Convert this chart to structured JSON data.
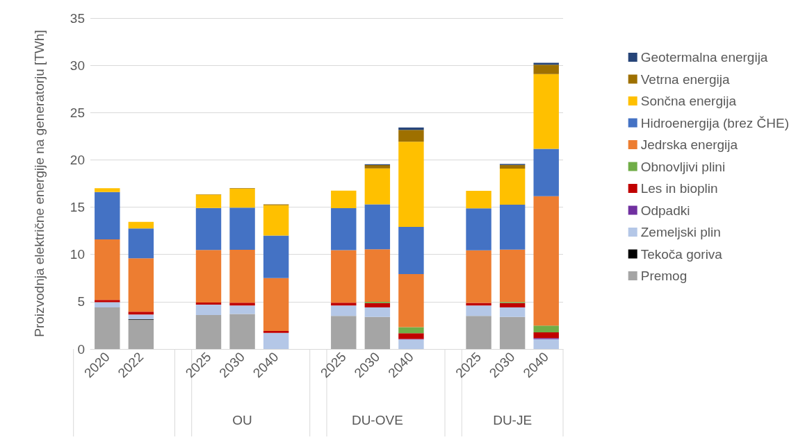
{
  "chart_data": {
    "type": "bar",
    "stacked": true,
    "ylabel": "Proizvodnja električne energije na generatorju [TWh]",
    "categories": [
      "2020",
      "2022",
      null,
      "2025",
      "2030",
      "2040",
      null,
      "2025",
      "2030",
      "2040",
      null,
      "2025",
      "2030",
      "2040"
    ],
    "series": [
      {
        "name": "Premog",
        "color": "#a5a5a5",
        "values": [
          4.4,
          3.1,
          null,
          3.6,
          3.7,
          0,
          null,
          3.5,
          3.4,
          0,
          null,
          3.5,
          3.4,
          0
        ]
      },
      {
        "name": "Tekoča goriva",
        "color": "#000000",
        "values": [
          0,
          0.05,
          null,
          0,
          0,
          0,
          null,
          0,
          0,
          0,
          null,
          0,
          0,
          0
        ]
      },
      {
        "name": "Zemeljski plin",
        "color": "#b4c7e7",
        "values": [
          0.55,
          0.5,
          null,
          1.1,
          0.9,
          1.7,
          null,
          1.1,
          1.0,
          1.0,
          null,
          1.1,
          1.0,
          1.05
        ]
      },
      {
        "name": "Odpadki",
        "color": "#7030a0",
        "values": [
          0,
          0,
          null,
          0,
          0,
          0,
          null,
          0,
          0,
          0.07,
          null,
          0,
          0,
          0.1
        ]
      },
      {
        "name": "Les in bioplin",
        "color": "#c00000",
        "values": [
          0.25,
          0.3,
          null,
          0.22,
          0.3,
          0.2,
          null,
          0.3,
          0.47,
          0.6,
          null,
          0.28,
          0.47,
          0.62
        ]
      },
      {
        "name": "Obnovljivi plini",
        "color": "#70ad47",
        "values": [
          0,
          0,
          null,
          0,
          0,
          0,
          null,
          0,
          0.12,
          0.65,
          null,
          0,
          0.1,
          0.7
        ]
      },
      {
        "name": "Jedrska energija",
        "color": "#ed7d31",
        "values": [
          6.4,
          5.65,
          null,
          5.55,
          5.6,
          5.6,
          null,
          5.55,
          5.55,
          5.6,
          null,
          5.55,
          5.55,
          13.7
        ]
      },
      {
        "name": "Hidroenergija (brez ČHE)",
        "color": "#4472c4",
        "values": [
          5.0,
          3.15,
          null,
          4.45,
          4.45,
          4.5,
          null,
          4.45,
          4.75,
          5.0,
          null,
          4.45,
          4.75,
          5.0
        ]
      },
      {
        "name": "Sončna energija",
        "color": "#ffc000",
        "values": [
          0.4,
          0.7,
          null,
          1.4,
          2.0,
          3.2,
          null,
          1.85,
          3.8,
          9.0,
          null,
          1.85,
          3.8,
          7.9
        ]
      },
      {
        "name": "Vetrna energija",
        "color": "#9e7000",
        "values": [
          0,
          0,
          null,
          0.05,
          0.05,
          0.1,
          null,
          0,
          0.35,
          1.25,
          null,
          0,
          0.4,
          1.0
        ]
      },
      {
        "name": "Geotermalna energija",
        "color": "#264478",
        "values": [
          0,
          0,
          null,
          0,
          0,
          0,
          null,
          0,
          0.1,
          0.25,
          null,
          0,
          0.1,
          0.2
        ]
      }
    ],
    "annotations": [
      "OU",
      "DU-OVE",
      "DU-JE"
    ],
    "ylim": [
      0,
      35
    ],
    "yticks": [
      0,
      5,
      10,
      15,
      20,
      25,
      30,
      35
    ],
    "grid": "y",
    "legend": "right"
  }
}
